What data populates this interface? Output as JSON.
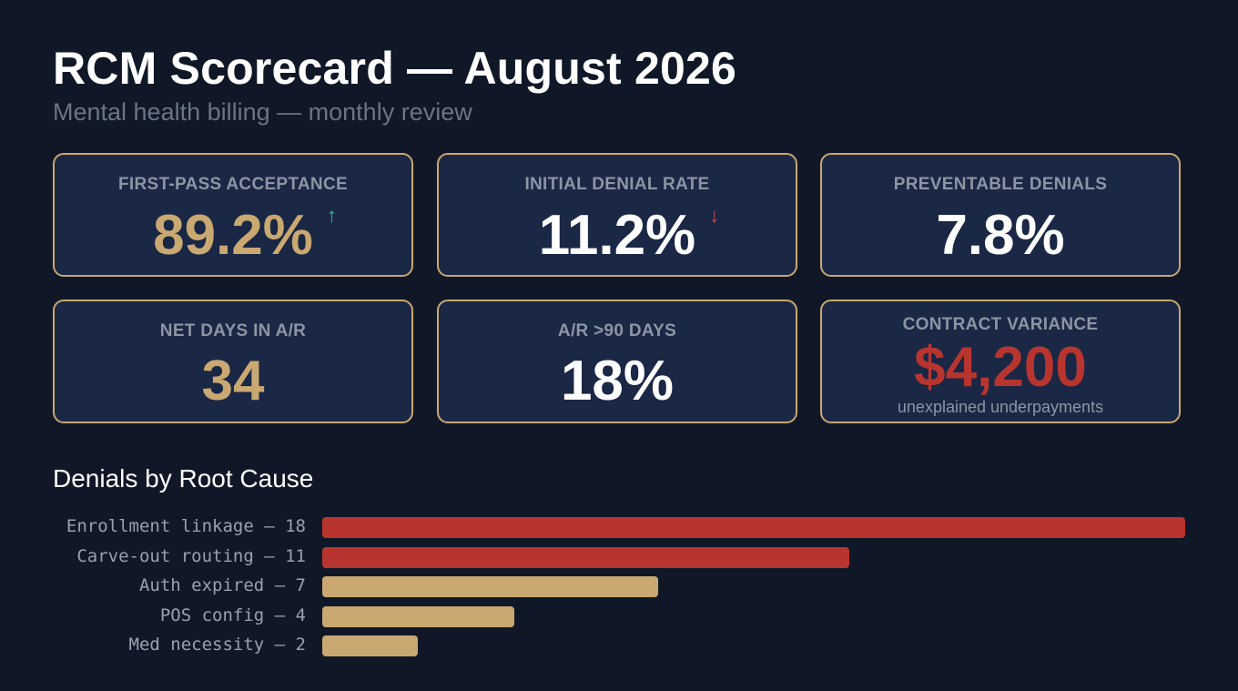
{
  "header": {
    "title": "RCM Scorecard — August 2026",
    "subtitle": "Mental health billing — monthly review"
  },
  "colors": {
    "background": "#101828",
    "card_background": "#1a2745",
    "card_border": "#c9a871",
    "gold": "#c9a871",
    "red": "#b8352f",
    "arrow_up": "#2bc48a",
    "arrow_down": "#d64545",
    "muted_text": "#8d95a3"
  },
  "kpis": [
    {
      "label": "FIRST-PASS ACCEPTANCE",
      "value": "89.2%",
      "trend_icon": "arrow-up-icon",
      "trend_glyph": "↑"
    },
    {
      "label": "INITIAL DENIAL RATE",
      "value": "11.2%",
      "trend_icon": "arrow-down-icon",
      "trend_glyph": "↓"
    },
    {
      "label": "PREVENTABLE DENIALS",
      "value": "7.8%"
    },
    {
      "label": "NET DAYS IN A/R",
      "value": "34"
    },
    {
      "label": "A/R >90 DAYS",
      "value": "18%"
    },
    {
      "label": "CONTRACT VARIANCE",
      "value": "$4,200",
      "sublabel": "unexplained underpayments"
    }
  ],
  "denials": {
    "title": "Denials by Root Cause"
  },
  "chart_data": {
    "type": "bar",
    "orientation": "horizontal",
    "title": "Denials by Root Cause",
    "categories": [
      "Enrollment linkage",
      "Carve-out routing",
      "Auth expired",
      "POS config",
      "Med necessity"
    ],
    "labels": [
      "Enrollment linkage — 18",
      "Carve-out routing — 11",
      "Auth expired — 7",
      "POS config — 4",
      "Med necessity — 2"
    ],
    "values": [
      18,
      11,
      7,
      4,
      2
    ],
    "xlim": [
      0,
      18
    ],
    "colors": [
      "#b8352f",
      "#b8352f",
      "#c9a871",
      "#c9a871",
      "#c9a871"
    ],
    "grid": false
  }
}
